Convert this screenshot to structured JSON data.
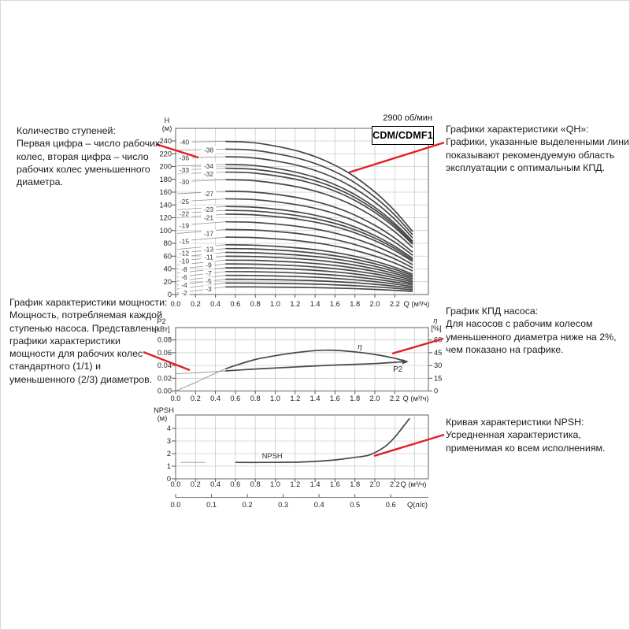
{
  "colors": {
    "red": "#e31e25",
    "curve": "#474747",
    "curve_thin": "#949494",
    "grid": "#cbcbcb",
    "frame": "#6f6f6f",
    "tick": "#555555",
    "tick_text": "#222222",
    "text": "#1b1b1b"
  },
  "header": {
    "speed": "2900 об/мин",
    "model": "CDM/CDMF1"
  },
  "annotations": {
    "stages": {
      "lines": [
        "Количество ступеней:",
        "Первая цифра – число рабочих",
        "колес, вторая цифра – число",
        "рабочих колес уменьшенного",
        "диаметра."
      ]
    },
    "power": {
      "lines": [
        "График характеристики мощности:",
        "Мощность, потребляемая каждой",
        "ступенью насоса. Представлены",
        "графики характеристики",
        "мощности для рабочих колес",
        "стандартного (1/1) и",
        "уменьшенного (2/3) диаметров."
      ]
    },
    "qh": {
      "lines": [
        "Графики характеристики «QH»:",
        "Графики, указанные выделенными линиями,",
        "показывают рекомендуемую область",
        "эксплуатации с оптимальным КПД."
      ]
    },
    "eff": {
      "lines": [
        "График КПД насоса:",
        "Для насосов с рабочим колесом",
        "уменьшенного диаметра ниже на 2%,",
        "чем показано на графике."
      ]
    },
    "npsh": {
      "lines": [
        "Кривая характеристики NPSH:",
        "Усредненная характеристика,",
        "применимая ко всем исполнениям."
      ]
    }
  },
  "chart_data": [
    {
      "id": "qh",
      "type": "line",
      "title": "CDM/CDMF1",
      "speed_label": "2900 об/мин",
      "ylabel": "H",
      "ylabel_unit": "(м)",
      "xlabel": "Q (м³/ч)",
      "xlim": [
        0,
        2.53
      ],
      "ylim": [
        0,
        260
      ],
      "x_ticks": [
        "0.0",
        "0.2",
        "0.4",
        "0.6",
        "0.8",
        "1.0",
        "1.2",
        "1.4",
        "1.6",
        "1.8",
        "2.0",
        "2.2"
      ],
      "y_ticks": [
        0,
        20,
        40,
        60,
        80,
        100,
        120,
        140,
        160,
        180,
        200,
        220,
        240
      ],
      "recommended_range": [
        0.5,
        2.38
      ],
      "head_shape": {
        "q": [
          0,
          0.5,
          0.75,
          1.0,
          1.25,
          1.5,
          1.75,
          2.0,
          2.2,
          2.38
        ],
        "ratio": [
          1,
          0.997,
          0.991,
          0.967,
          0.93,
          0.872,
          0.787,
          0.668,
          0.545,
          0.409
        ]
      },
      "stage_curves": [
        {
          "label": "-40",
          "h0": 240,
          "col": 0
        },
        {
          "label": "-38",
          "h0": 228,
          "col": 1
        },
        {
          "label": "-36",
          "h0": 216,
          "col": 0
        },
        {
          "label": "-34",
          "h0": 204,
          "col": 1
        },
        {
          "label": "-33",
          "h0": 198,
          "col": 0
        },
        {
          "label": "-32",
          "h0": 192,
          "col": 1
        },
        {
          "label": "-30",
          "h0": 180,
          "col": 0
        },
        {
          "label": "-27",
          "h0": 162,
          "col": 1
        },
        {
          "label": "-25",
          "h0": 150,
          "col": 0
        },
        {
          "label": "-23",
          "h0": 138,
          "col": 1
        },
        {
          "label": "-22",
          "h0": 132,
          "col": 0
        },
        {
          "label": "-21",
          "h0": 126,
          "col": 1
        },
        {
          "label": "-19",
          "h0": 114,
          "col": 0
        },
        {
          "label": "-17",
          "h0": 102,
          "col": 1
        },
        {
          "label": "-15",
          "h0": 90,
          "col": 0
        },
        {
          "label": "-13",
          "h0": 78,
          "col": 1
        },
        {
          "label": "-12",
          "h0": 72,
          "col": 0
        },
        {
          "label": "-11",
          "h0": 66,
          "col": 1
        },
        {
          "label": "-10",
          "h0": 60,
          "col": 0
        },
        {
          "label": "-9",
          "h0": 54,
          "col": 1
        },
        {
          "label": "-8",
          "h0": 48,
          "col": 0
        },
        {
          "label": "-7",
          "h0": 42,
          "col": 1
        },
        {
          "label": "-6",
          "h0": 36,
          "col": 0
        },
        {
          "label": "-5",
          "h0": 30,
          "col": 1
        },
        {
          "label": "-4",
          "h0": 24,
          "col": 0
        },
        {
          "label": "-3",
          "h0": 18,
          "col": 1
        },
        {
          "label": "-2",
          "h0": 12,
          "col": 0
        }
      ]
    },
    {
      "id": "power_eff",
      "type": "line",
      "ylabel_left": "P2",
      "ylabel_left_unit": "[кВт]",
      "ylabel_right": "η",
      "ylabel_right_unit": "[%]",
      "xlabel": "Q (м³/ч)",
      "x_ticks": [
        "0.0",
        "0.2",
        "0.4",
        "0.6",
        "0.8",
        "1.0",
        "1.2",
        "1.4",
        "1.6",
        "1.8",
        "2.0",
        "2.2"
      ],
      "y_ticks_left": [
        "0.00",
        "0.02",
        "0.04",
        "0.06",
        "0.08"
      ],
      "y_ticks_right": [
        0,
        15,
        30,
        45,
        60
      ],
      "series": [
        {
          "name": "eta",
          "label": "η",
          "label_style": "italic",
          "axis": "right",
          "bold_from": 0.5,
          "x": [
            0,
            0.2,
            0.4,
            0.5,
            0.6,
            0.8,
            1.0,
            1.2,
            1.4,
            1.5,
            1.6,
            1.8,
            2.0,
            2.2,
            2.3
          ],
          "values": [
            0,
            10,
            21,
            26,
            30,
            37,
            41.5,
            45,
            47.5,
            48,
            47.8,
            46,
            43,
            38.5,
            35
          ],
          "label_at": {
            "q": 1.85,
            "dy": -7
          }
        },
        {
          "name": "P2",
          "label": "P2",
          "axis": "left",
          "bold_from": 0.5,
          "end_arrow": true,
          "x": [
            0,
            0.25,
            0.5,
            0.75,
            1.0,
            1.25,
            1.5,
            1.75,
            2.0,
            2.2,
            2.3
          ],
          "values": [
            0.027,
            0.029,
            0.0315,
            0.034,
            0.036,
            0.038,
            0.04,
            0.0415,
            0.043,
            0.045,
            0.046
          ],
          "label_at": {
            "q": 2.23,
            "dy": 9
          }
        }
      ]
    },
    {
      "id": "npsh",
      "type": "line",
      "ylabel": "NPSH",
      "ylabel_unit": "(м)",
      "xlabel": "Q (м³/ч)",
      "x_ticks": [
        "0.0",
        "0.2",
        "0.4",
        "0.6",
        "0.8",
        "1.0",
        "1.2",
        "1.4",
        "1.6",
        "1.8",
        "2.0",
        "2.2"
      ],
      "y_ticks": [
        0,
        1,
        2,
        3,
        4
      ],
      "series": [
        {
          "name": "NPSH",
          "label": "NPSH",
          "axis": "left",
          "bold_from": 0.5,
          "x": [
            0.05,
            0.3,
            0.6,
            0.9,
            1.2,
            1.4,
            1.6,
            1.8,
            1.95,
            2.1,
            2.2,
            2.3,
            2.35
          ],
          "values": [
            1.3,
            1.3,
            1.3,
            1.3,
            1.32,
            1.38,
            1.5,
            1.7,
            1.9,
            2.55,
            3.3,
            4.3,
            4.8
          ],
          "label_at": {
            "q": 0.97,
            "dy": -8
          }
        }
      ],
      "secondary_xaxis": {
        "label": "Q(л/с)",
        "ticks": [
          "0.0",
          "0.1",
          "0.2",
          "0.3",
          "0.4",
          "0.5",
          "0.6"
        ],
        "m3h_per_unit": 3.6
      }
    }
  ]
}
